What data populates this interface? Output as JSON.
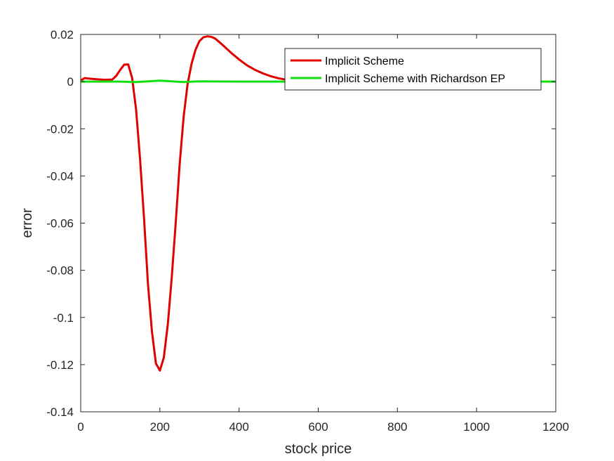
{
  "chart_data": {
    "type": "line",
    "title": "",
    "xlabel": "stock price",
    "ylabel": "error",
    "xlim": [
      0,
      1200
    ],
    "ylim": [
      -0.14,
      0.02
    ],
    "xticks": [
      0,
      200,
      400,
      600,
      800,
      1000,
      1200
    ],
    "xtick_labels": [
      "0",
      "200",
      "400",
      "600",
      "800",
      "1000",
      "1200"
    ],
    "yticks": [
      0.02,
      0,
      -0.02,
      -0.04,
      -0.06,
      -0.08,
      -0.1,
      -0.12,
      -0.14
    ],
    "ytick_labels": [
      "0.02",
      "0",
      "-0.02",
      "-0.04",
      "-0.06",
      "-0.08",
      "-0.1",
      "-0.12",
      "-0.14"
    ],
    "grid": false,
    "legend_position": "top-right",
    "series": [
      {
        "name": "Implicit Scheme",
        "color": "#e00000",
        "x": [
          0,
          10,
          20,
          40,
          60,
          80,
          90,
          100,
          110,
          120,
          130,
          140,
          150,
          160,
          170,
          180,
          190,
          200,
          210,
          220,
          230,
          240,
          250,
          260,
          270,
          280,
          290,
          300,
          310,
          320,
          330,
          340,
          350,
          360,
          380,
          400,
          420,
          440,
          460,
          480,
          500,
          520
        ],
        "y": [
          0.0005,
          0.0015,
          0.0013,
          0.001,
          0.0008,
          0.0009,
          0.0025,
          0.005,
          0.0072,
          0.0073,
          0.0015,
          -0.012,
          -0.033,
          -0.058,
          -0.086,
          -0.106,
          -0.1195,
          -0.1225,
          -0.117,
          -0.103,
          -0.083,
          -0.06,
          -0.035,
          -0.015,
          -0.001,
          0.0075,
          0.0135,
          0.0172,
          0.0188,
          0.0192,
          0.019,
          0.0182,
          0.0168,
          0.0153,
          0.0122,
          0.0094,
          0.0069,
          0.005,
          0.0035,
          0.0023,
          0.0014,
          0.0008
        ]
      },
      {
        "name": "Implicit Scheme with Richardson EP",
        "color": "#10e010",
        "x": [
          0,
          50,
          100,
          140,
          160,
          200,
          230,
          260,
          300,
          400,
          500,
          600,
          700,
          800,
          900,
          1000,
          1100,
          1200
        ],
        "y": [
          0,
          0,
          0,
          -0.0002,
          0,
          0.0004,
          0.0001,
          -0.0002,
          0.0001,
          0,
          0,
          0,
          0,
          0,
          0,
          0,
          0,
          0
        ]
      }
    ]
  }
}
